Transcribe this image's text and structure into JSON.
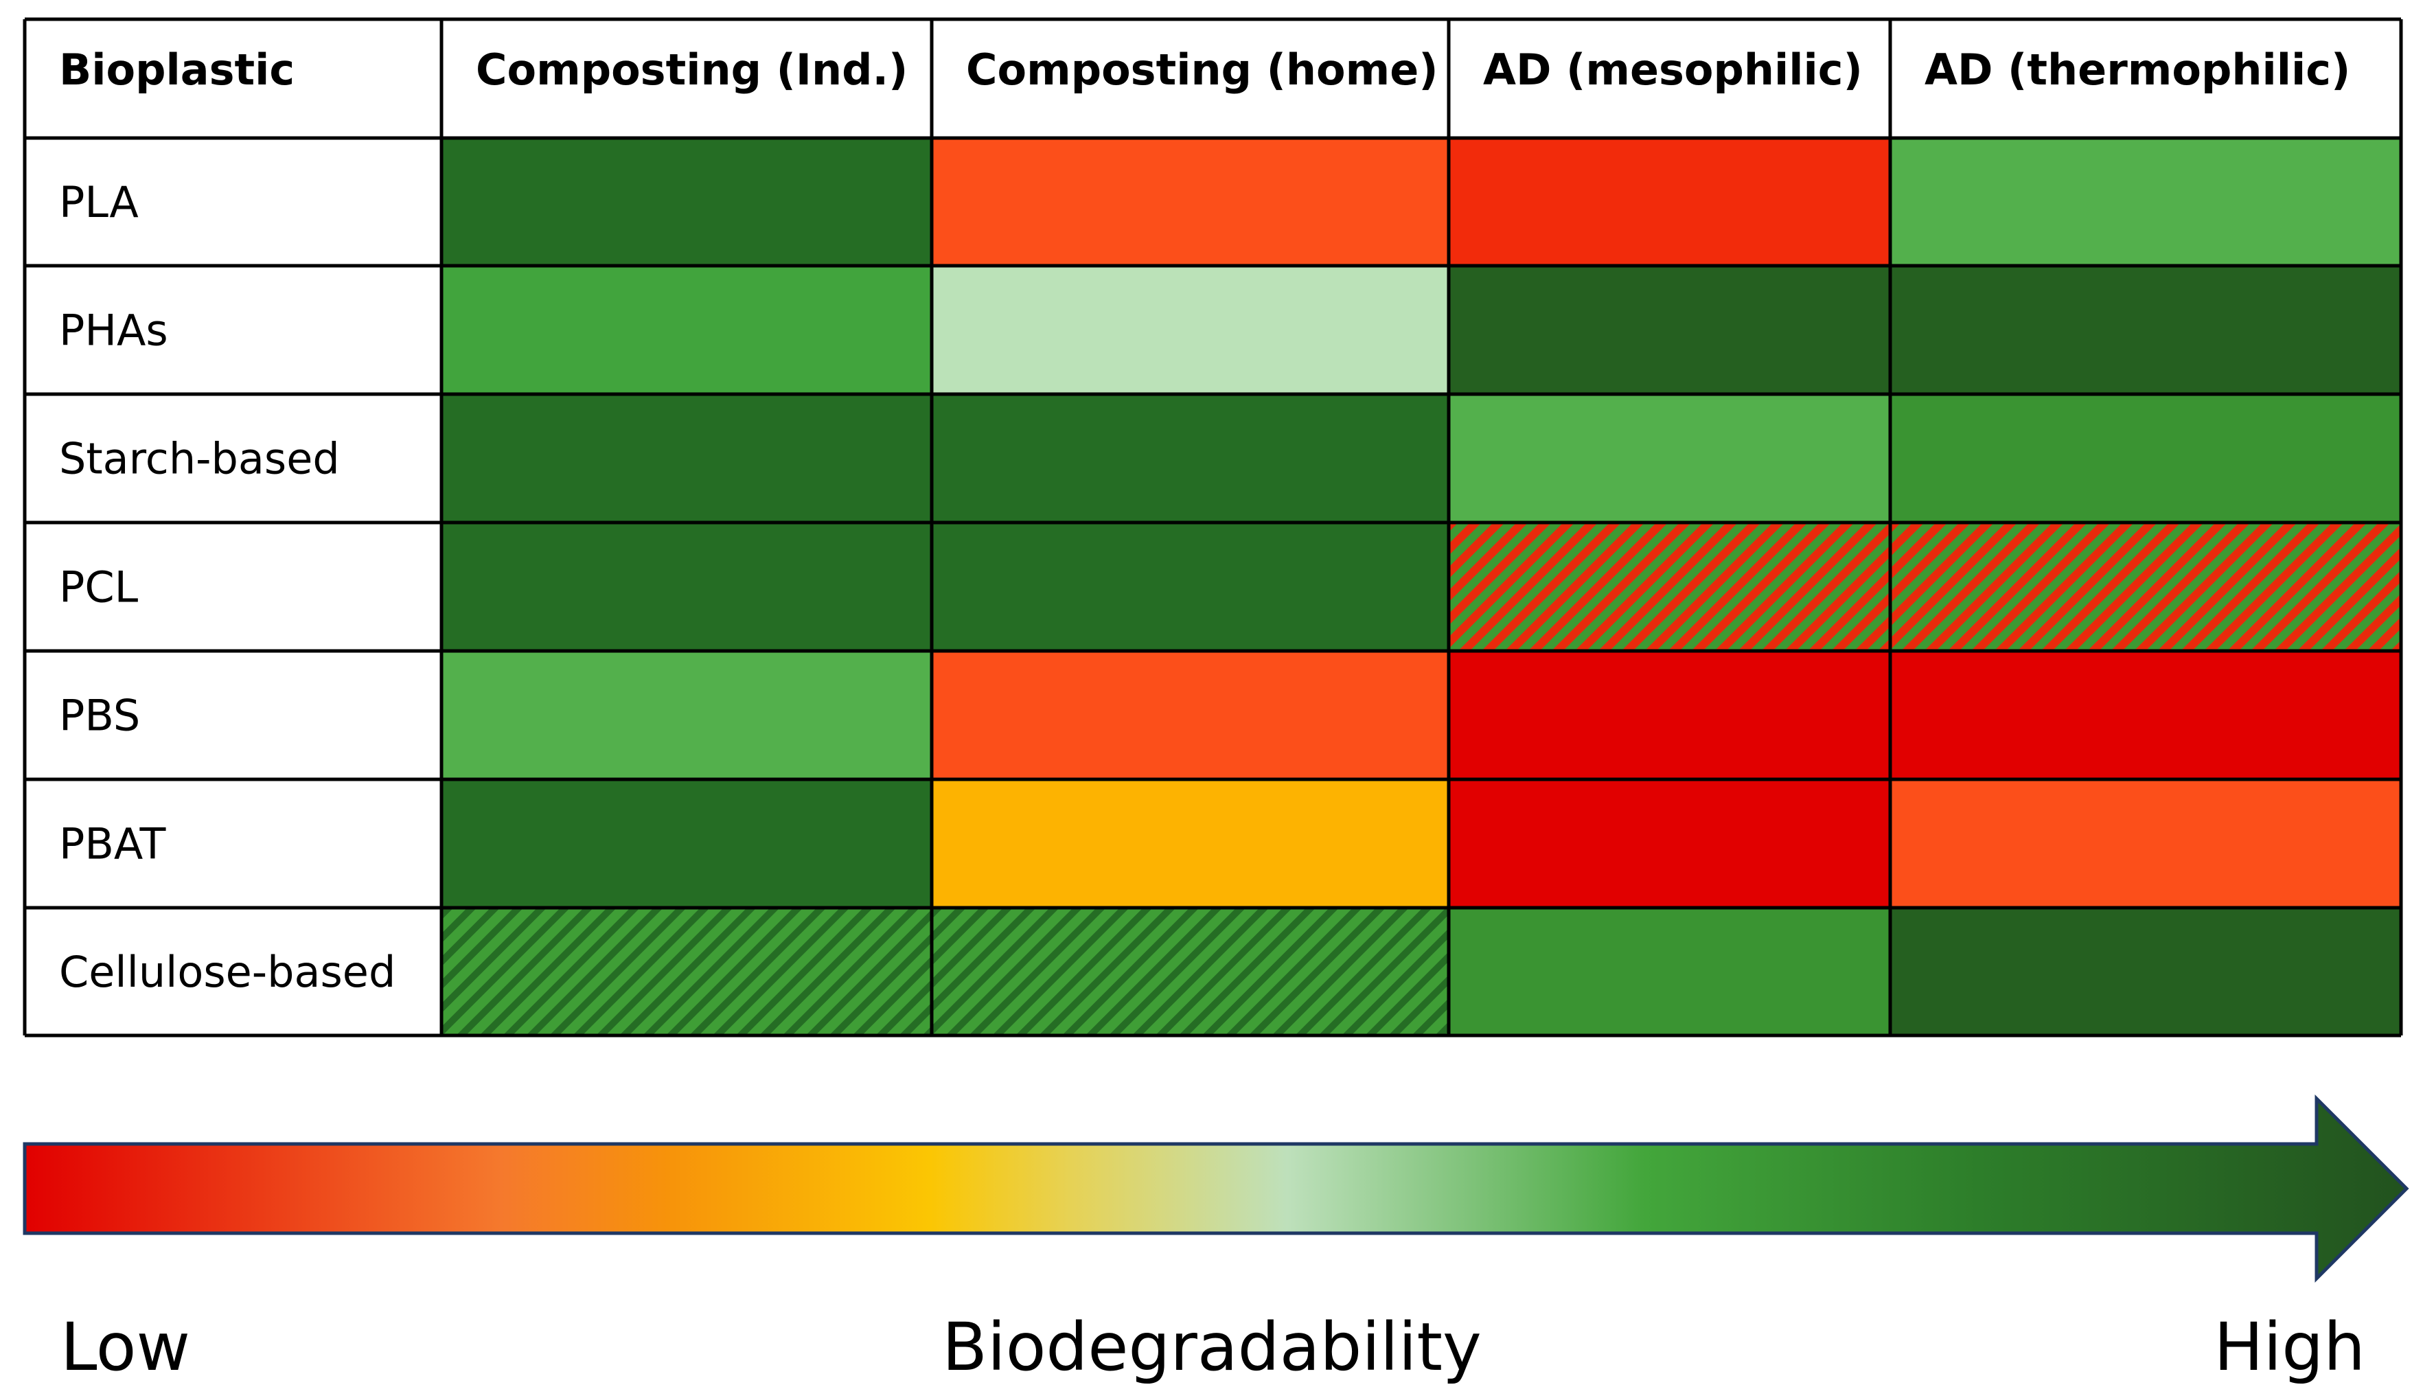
{
  "chart_data": {
    "type": "heatmap",
    "title": "",
    "row_header": "Bioplastic",
    "columns": [
      "Composting (Ind.)",
      "Composting (home)",
      "AD (mesophilic)",
      "AD (thermophilic)"
    ],
    "rows": [
      "PLA",
      "PHAs",
      "Starch-based",
      "PCL",
      "PBS",
      "PBAT",
      "Cellulose-based"
    ],
    "value_scale": {
      "min": 0,
      "max": 1,
      "meaning": "biodegradability (0 = low, 1 = high)"
    },
    "values": [
      [
        1.0,
        0.1,
        0.05,
        0.75
      ],
      [
        0.7,
        0.55,
        1.0,
        1.0
      ],
      [
        1.0,
        1.0,
        0.75,
        0.85
      ],
      [
        1.0,
        1.0,
        null,
        null
      ],
      [
        0.75,
        0.1,
        0.0,
        0.0
      ],
      [
        1.0,
        0.3,
        0.0,
        0.1
      ],
      [
        null,
        null,
        0.85,
        1.0
      ]
    ],
    "cell_colors": [
      [
        "#256d24",
        "#fc4f1a",
        "#f22b0b",
        "#53b04c"
      ],
      [
        "#41a43d",
        "#bbe2b8",
        "#256020",
        "#256020"
      ],
      [
        "#256d24",
        "#256d24",
        "#53b04c",
        "#3a9432"
      ],
      [
        "#256d24",
        "#256d24",
        "hatch-red-green",
        "hatch-red-green"
      ],
      [
        "#53b04c",
        "#fc4f1a",
        "#e10000",
        "#e10000"
      ],
      [
        "#256d24",
        "#fdb301",
        "#e10000",
        "#fc4f1a"
      ],
      [
        "hatch-green",
        "hatch-green",
        "#3a9432",
        "#256020"
      ]
    ],
    "hatch_styles": {
      "hatch-red-green": {
        "base": "#e92a0c",
        "stripe": "#3d9a33"
      },
      "hatch-green": {
        "base": "#3f9e36",
        "stripe": "#256d24"
      }
    },
    "legend": {
      "label": "Biodegradability",
      "low_label": "Low",
      "high_label": "High",
      "gradient_stops": [
        {
          "offset": 0.0,
          "color": "#e10000"
        },
        {
          "offset": 0.2,
          "color": "#f5792d"
        },
        {
          "offset": 0.27,
          "color": "#f7930a"
        },
        {
          "offset": 0.38,
          "color": "#fbc603"
        },
        {
          "offset": 0.44,
          "color": "#e6d256"
        },
        {
          "offset": 0.53,
          "color": "#bee0bb"
        },
        {
          "offset": 0.68,
          "color": "#43a63b"
        },
        {
          "offset": 0.82,
          "color": "#2d7e2a"
        },
        {
          "offset": 1.0,
          "color": "#22521e"
        }
      ]
    }
  }
}
